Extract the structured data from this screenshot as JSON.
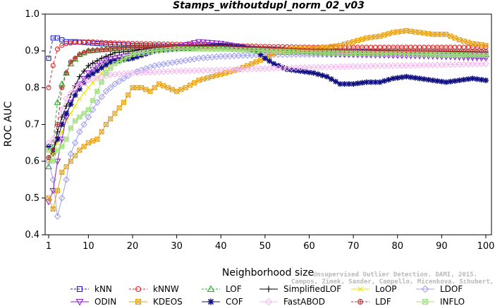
{
  "chart_data": {
    "type": "line",
    "title": "Stamps_withoutdupl_norm_02_v03",
    "xlabel": "Neighborhood size",
    "ylabel": "ROC AUC",
    "xlim": [
      0,
      100
    ],
    "ylim": [
      0.4,
      1.0
    ],
    "xticks": [
      1,
      10,
      20,
      30,
      40,
      50,
      60,
      70,
      80,
      90,
      100
    ],
    "yticks": [
      0.4,
      0.5,
      0.6,
      0.7,
      0.8,
      0.9,
      1.0
    ],
    "xtick_labels": [
      "1",
      "10",
      "20",
      "30",
      "40",
      "50",
      "60",
      "70",
      "80",
      "90",
      "100"
    ],
    "ytick_labels": [
      "0.4",
      "0.5",
      "0.6",
      "0.7",
      "0.8",
      "0.9",
      "1.0"
    ],
    "grid": false,
    "legend_position": "bottom",
    "watermark": [
      "Unsupervised Outlier Detection. DAMI, 2015.",
      "Campos, Zimek, Sander, Campello, Micenkova, Schubert, Assent, Houle"
    ],
    "series": [
      {
        "name": "kNN",
        "color": "#1f1fd6",
        "marker": "square",
        "points": [
          [
            1,
            0.88
          ],
          [
            2,
            0.935
          ],
          [
            3,
            0.935
          ],
          [
            4,
            0.93
          ],
          [
            5,
            0.925
          ],
          [
            7,
            0.925
          ],
          [
            10,
            0.922
          ],
          [
            15,
            0.918
          ],
          [
            20,
            0.915
          ],
          [
            30,
            0.912
          ],
          [
            40,
            0.91
          ],
          [
            50,
            0.905
          ],
          [
            60,
            0.9
          ],
          [
            70,
            0.898
          ],
          [
            80,
            0.895
          ],
          [
            90,
            0.893
          ],
          [
            100,
            0.89
          ]
        ]
      },
      {
        "name": "kNNW",
        "color": "#e02020",
        "marker": "circle",
        "points": [
          [
            1,
            0.8
          ],
          [
            2,
            0.86
          ],
          [
            3,
            0.905
          ],
          [
            4,
            0.915
          ],
          [
            5,
            0.92
          ],
          [
            7,
            0.923
          ],
          [
            10,
            0.925
          ],
          [
            15,
            0.922
          ],
          [
            20,
            0.92
          ],
          [
            30,
            0.918
          ],
          [
            40,
            0.915
          ],
          [
            50,
            0.912
          ],
          [
            60,
            0.91
          ],
          [
            70,
            0.91
          ],
          [
            80,
            0.91
          ],
          [
            90,
            0.91
          ],
          [
            100,
            0.91
          ]
        ]
      },
      {
        "name": "LOF",
        "color": "#20b020",
        "marker": "triangle-up",
        "points": [
          [
            1,
            0.585
          ],
          [
            2,
            0.65
          ],
          [
            3,
            0.76
          ],
          [
            4,
            0.81
          ],
          [
            5,
            0.84
          ],
          [
            6,
            0.865
          ],
          [
            8,
            0.89
          ],
          [
            10,
            0.9
          ],
          [
            15,
            0.905
          ],
          [
            20,
            0.91
          ],
          [
            30,
            0.91
          ],
          [
            40,
            0.91
          ],
          [
            50,
            0.905
          ],
          [
            60,
            0.898
          ],
          [
            70,
            0.895
          ],
          [
            80,
            0.895
          ],
          [
            90,
            0.893
          ],
          [
            100,
            0.89
          ]
        ]
      },
      {
        "name": "SimplifiedLOF",
        "color": "#000000",
        "marker": "plus",
        "points": [
          [
            1,
            0.64
          ],
          [
            2,
            0.62
          ],
          [
            3,
            0.68
          ],
          [
            4,
            0.72
          ],
          [
            5,
            0.75
          ],
          [
            6,
            0.78
          ],
          [
            8,
            0.83
          ],
          [
            10,
            0.86
          ],
          [
            13,
            0.88
          ],
          [
            16,
            0.895
          ],
          [
            20,
            0.9
          ],
          [
            25,
            0.91
          ],
          [
            30,
            0.91
          ],
          [
            40,
            0.91
          ],
          [
            50,
            0.905
          ],
          [
            60,
            0.9
          ],
          [
            70,
            0.898
          ],
          [
            80,
            0.896
          ],
          [
            90,
            0.895
          ],
          [
            100,
            0.893
          ]
        ]
      },
      {
        "name": "LoOP",
        "color": "#e6e600",
        "marker": "cross",
        "points": [
          [
            1,
            0.6
          ],
          [
            2,
            0.62
          ],
          [
            3,
            0.65
          ],
          [
            4,
            0.68
          ],
          [
            5,
            0.71
          ],
          [
            6,
            0.73
          ],
          [
            8,
            0.77
          ],
          [
            10,
            0.8
          ],
          [
            13,
            0.84
          ],
          [
            16,
            0.87
          ],
          [
            20,
            0.89
          ],
          [
            25,
            0.9
          ],
          [
            30,
            0.905
          ],
          [
            40,
            0.905
          ],
          [
            50,
            0.9
          ],
          [
            60,
            0.898
          ],
          [
            70,
            0.895
          ],
          [
            80,
            0.893
          ],
          [
            90,
            0.89
          ],
          [
            100,
            0.888
          ]
        ]
      },
      {
        "name": "LDOF",
        "color": "#a0a0f0",
        "marker": "diamond",
        "points": [
          [
            1,
            0.6
          ],
          [
            2,
            0.55
          ],
          [
            3,
            0.45
          ],
          [
            4,
            0.5
          ],
          [
            5,
            0.55
          ],
          [
            6,
            0.62
          ],
          [
            8,
            0.68
          ],
          [
            10,
            0.72
          ],
          [
            12,
            0.76
          ],
          [
            14,
            0.79
          ],
          [
            16,
            0.81
          ],
          [
            20,
            0.84
          ],
          [
            25,
            0.86
          ],
          [
            30,
            0.87
          ],
          [
            35,
            0.88
          ],
          [
            40,
            0.885
          ],
          [
            50,
            0.89
          ],
          [
            60,
            0.89
          ],
          [
            70,
            0.89
          ],
          [
            80,
            0.888
          ],
          [
            90,
            0.887
          ],
          [
            100,
            0.885
          ]
        ]
      },
      {
        "name": "ODIN",
        "color": "#9020d0",
        "marker": "triangle-down",
        "points": [
          [
            1,
            0.49
          ],
          [
            2,
            0.52
          ],
          [
            3,
            0.6
          ],
          [
            4,
            0.66
          ],
          [
            5,
            0.72
          ],
          [
            6,
            0.76
          ],
          [
            8,
            0.81
          ],
          [
            10,
            0.84
          ],
          [
            12,
            0.86
          ],
          [
            14,
            0.875
          ],
          [
            16,
            0.88
          ],
          [
            20,
            0.89
          ],
          [
            25,
            0.9
          ],
          [
            30,
            0.91
          ],
          [
            35,
            0.925
          ],
          [
            40,
            0.92
          ],
          [
            45,
            0.91
          ],
          [
            50,
            0.9
          ],
          [
            60,
            0.895
          ],
          [
            70,
            0.89
          ],
          [
            80,
            0.888
          ],
          [
            90,
            0.885
          ],
          [
            100,
            0.88
          ]
        ]
      },
      {
        "name": "KDEOS",
        "color": "#e8a010",
        "marker": "square-x",
        "points": [
          [
            1,
            0.5
          ],
          [
            2,
            0.47
          ],
          [
            3,
            0.52
          ],
          [
            4,
            0.57
          ],
          [
            6,
            0.6
          ],
          [
            8,
            0.63
          ],
          [
            10,
            0.65
          ],
          [
            12,
            0.66
          ],
          [
            14,
            0.7
          ],
          [
            16,
            0.73
          ],
          [
            18,
            0.76
          ],
          [
            20,
            0.8
          ],
          [
            22,
            0.8
          ],
          [
            24,
            0.79
          ],
          [
            26,
            0.81
          ],
          [
            28,
            0.8
          ],
          [
            30,
            0.79
          ],
          [
            32,
            0.8
          ],
          [
            35,
            0.82
          ],
          [
            38,
            0.83
          ],
          [
            41,
            0.84
          ],
          [
            44,
            0.85
          ],
          [
            47,
            0.865
          ],
          [
            50,
            0.88
          ],
          [
            53,
            0.9
          ],
          [
            56,
            0.905
          ],
          [
            60,
            0.905
          ],
          [
            64,
            0.91
          ],
          [
            67,
            0.915
          ],
          [
            70,
            0.925
          ],
          [
            73,
            0.935
          ],
          [
            76,
            0.94
          ],
          [
            79,
            0.95
          ],
          [
            82,
            0.955
          ],
          [
            85,
            0.95
          ],
          [
            88,
            0.945
          ],
          [
            91,
            0.945
          ],
          [
            94,
            0.93
          ],
          [
            97,
            0.92
          ],
          [
            100,
            0.915
          ]
        ]
      },
      {
        "name": "COF",
        "color": "#101080",
        "marker": "asterisk",
        "points": [
          [
            1,
            0.64
          ],
          [
            2,
            0.63
          ],
          [
            3,
            0.66
          ],
          [
            4,
            0.7
          ],
          [
            5,
            0.73
          ],
          [
            7,
            0.78
          ],
          [
            10,
            0.83
          ],
          [
            15,
            0.87
          ],
          [
            20,
            0.88
          ],
          [
            25,
            0.9
          ],
          [
            30,
            0.905
          ],
          [
            35,
            0.91
          ],
          [
            40,
            0.915
          ],
          [
            45,
            0.91
          ],
          [
            48,
            0.9
          ],
          [
            50,
            0.88
          ],
          [
            52,
            0.865
          ],
          [
            55,
            0.85
          ],
          [
            58,
            0.845
          ],
          [
            61,
            0.84
          ],
          [
            64,
            0.83
          ],
          [
            67,
            0.81
          ],
          [
            70,
            0.81
          ],
          [
            73,
            0.815
          ],
          [
            76,
            0.815
          ],
          [
            79,
            0.825
          ],
          [
            82,
            0.83
          ],
          [
            85,
            0.825
          ],
          [
            88,
            0.82
          ],
          [
            91,
            0.815
          ],
          [
            94,
            0.82
          ],
          [
            97,
            0.825
          ],
          [
            100,
            0.82
          ]
        ]
      },
      {
        "name": "FastABOD",
        "color": "#f5b8f0",
        "marker": "diamond",
        "points": [
          [
            1,
            0.65
          ],
          [
            2,
            0.66
          ],
          [
            3,
            0.7
          ],
          [
            4,
            0.74
          ],
          [
            5,
            0.77
          ],
          [
            7,
            0.8
          ],
          [
            10,
            0.82
          ],
          [
            15,
            0.835
          ],
          [
            20,
            0.84
          ],
          [
            30,
            0.845
          ],
          [
            40,
            0.848
          ],
          [
            50,
            0.852
          ],
          [
            60,
            0.855
          ],
          [
            70,
            0.858
          ],
          [
            80,
            0.86
          ],
          [
            90,
            0.862
          ],
          [
            100,
            0.865
          ]
        ]
      },
      {
        "name": "LDF",
        "color": "#b03030",
        "marker": "circle-plus",
        "points": [
          [
            1,
            0.61
          ],
          [
            2,
            0.63
          ],
          [
            3,
            0.7
          ],
          [
            4,
            0.8
          ],
          [
            5,
            0.84
          ],
          [
            6,
            0.87
          ],
          [
            8,
            0.89
          ],
          [
            10,
            0.9
          ],
          [
            15,
            0.905
          ],
          [
            20,
            0.91
          ],
          [
            30,
            0.91
          ],
          [
            40,
            0.91
          ],
          [
            50,
            0.905
          ],
          [
            60,
            0.9
          ],
          [
            70,
            0.9
          ],
          [
            80,
            0.9
          ],
          [
            90,
            0.9
          ],
          [
            100,
            0.898
          ]
        ]
      },
      {
        "name": "INFLO",
        "color": "#a0e080",
        "marker": "star",
        "points": [
          [
            1,
            0.63
          ],
          [
            2,
            0.6
          ],
          [
            3,
            0.63
          ],
          [
            4,
            0.64
          ],
          [
            5,
            0.66
          ],
          [
            6,
            0.69
          ],
          [
            7,
            0.71
          ],
          [
            8,
            0.72
          ],
          [
            9,
            0.73
          ],
          [
            10,
            0.74
          ],
          [
            12,
            0.79
          ],
          [
            14,
            0.84
          ],
          [
            16,
            0.865
          ],
          [
            20,
            0.89
          ],
          [
            25,
            0.9
          ],
          [
            30,
            0.905
          ],
          [
            40,
            0.905
          ],
          [
            50,
            0.9
          ],
          [
            60,
            0.895
          ],
          [
            70,
            0.893
          ],
          [
            80,
            0.892
          ],
          [
            90,
            0.89
          ],
          [
            100,
            0.888
          ]
        ]
      }
    ]
  }
}
